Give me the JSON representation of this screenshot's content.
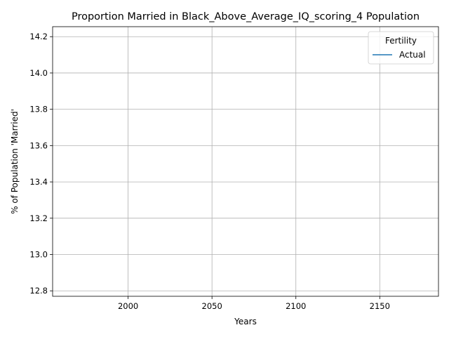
{
  "colors": {
    "series_line": "#1f77b4",
    "grid": "#b0b0b0",
    "legend_border": "#cccccc"
  },
  "chart_data": {
    "type": "line",
    "title": "Proportion Married in Black_Above_Average_IQ_scoring_4 Population",
    "xlabel": "Years",
    "ylabel": "% of Population 'Married'",
    "xlim": [
      1955,
      2185
    ],
    "ylim": [
      12.77,
      14.255
    ],
    "x_ticks": [
      2000,
      2050,
      2100,
      2150
    ],
    "x_tick_labels": [
      "2000",
      "2050",
      "2100",
      "2150"
    ],
    "y_ticks": [
      12.8,
      13.0,
      13.2,
      13.4,
      13.6,
      13.8,
      14.0,
      14.2
    ],
    "y_tick_labels": [
      "12.8",
      "13.0",
      "13.2",
      "13.4",
      "13.6",
      "13.8",
      "14.0",
      "14.2"
    ],
    "grid": true,
    "legend": {
      "title": "Fertility",
      "placement": "top-right",
      "entries": [
        "Actual"
      ]
    },
    "series": [
      {
        "name": "Actual",
        "x": [],
        "values": []
      }
    ]
  }
}
